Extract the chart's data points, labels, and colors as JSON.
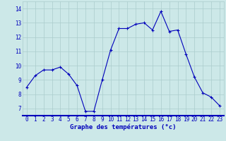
{
  "x": [
    0,
    1,
    2,
    3,
    4,
    5,
    6,
    7,
    8,
    9,
    10,
    11,
    12,
    13,
    14,
    15,
    16,
    17,
    18,
    19,
    20,
    21,
    22,
    23
  ],
  "y": [
    8.5,
    9.3,
    9.7,
    9.7,
    9.9,
    9.4,
    8.6,
    6.8,
    6.8,
    9.0,
    11.1,
    12.6,
    12.6,
    12.9,
    13.0,
    12.5,
    13.8,
    12.4,
    12.5,
    10.8,
    9.2,
    8.1,
    7.8,
    7.2
  ],
  "line_color": "#0000bb",
  "marker": "+",
  "marker_color": "#0000bb",
  "bg_color": "#cce8e8",
  "grid_color": "#aacccc",
  "xlabel": "Graphe des températures (°c)",
  "xlabel_color": "#0000bb",
  "xlabel_fontsize": 6.5,
  "tick_color": "#0000bb",
  "tick_fontsize": 5.5,
  "yticks": [
    7,
    8,
    9,
    10,
    11,
    12,
    13,
    14
  ],
  "xlim": [
    -0.5,
    23.5
  ],
  "ylim": [
    6.5,
    14.5
  ],
  "xtick_labels": [
    "0",
    "1",
    "2",
    "3",
    "4",
    "5",
    "6",
    "7",
    "8",
    "9",
    "10",
    "11",
    "12",
    "13",
    "14",
    "15",
    "16",
    "17",
    "18",
    "19",
    "20",
    "21",
    "22",
    "23"
  ]
}
